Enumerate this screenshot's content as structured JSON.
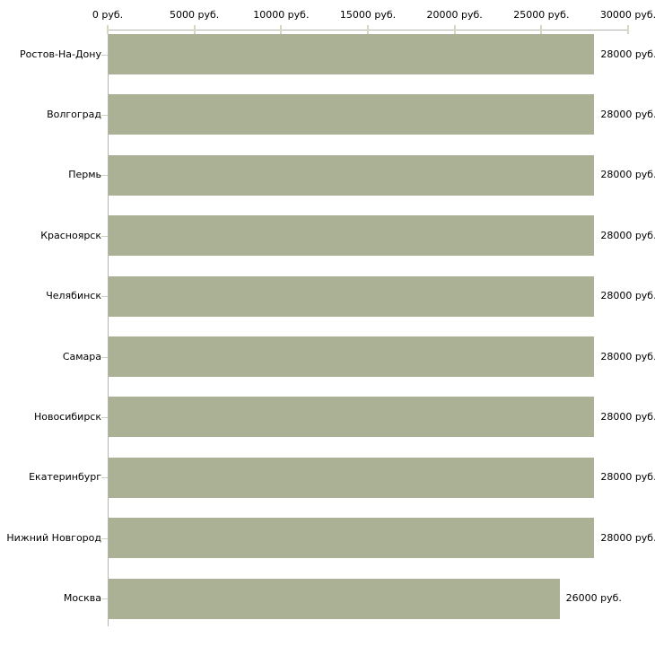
{
  "chart_data": {
    "type": "bar",
    "orientation": "horizontal",
    "title": "",
    "xlabel": "",
    "ylabel": "",
    "grid": false,
    "legend": "none",
    "x_axis": {
      "position": "top",
      "min": 0,
      "max": 30000,
      "tick_values": [
        0,
        5000,
        10000,
        15000,
        20000,
        25000,
        30000
      ],
      "tick_labels": [
        "0 руб.",
        "5000 руб.",
        "10000 руб.",
        "15000 руб.",
        "20000 руб.",
        "25000 руб.",
        "30000 руб."
      ]
    },
    "categories": [
      "Ростов-На-Дону",
      "Волгоград",
      "Пермь",
      "Красноярск",
      "Челябинск",
      "Самара",
      "Новосибирск",
      "Екатеринбург",
      "Нижний Новгород",
      "Москва"
    ],
    "values": [
      28000,
      28000,
      28000,
      28000,
      28000,
      28000,
      28000,
      28000,
      28000,
      26000
    ],
    "value_labels": [
      "28000 руб.",
      "28000 руб.",
      "28000 руб.",
      "28000 руб.",
      "28000 руб.",
      "28000 руб.",
      "28000 руб.",
      "28000 руб.",
      "28000 руб.",
      "26000 руб."
    ],
    "colors": {
      "bar": "#abb194",
      "axis_line": "#b4b4b0",
      "x_tick": "#d6d8c0",
      "y_tick": "#cfd1bd",
      "text": "#000000",
      "background": "#ffffff"
    }
  }
}
